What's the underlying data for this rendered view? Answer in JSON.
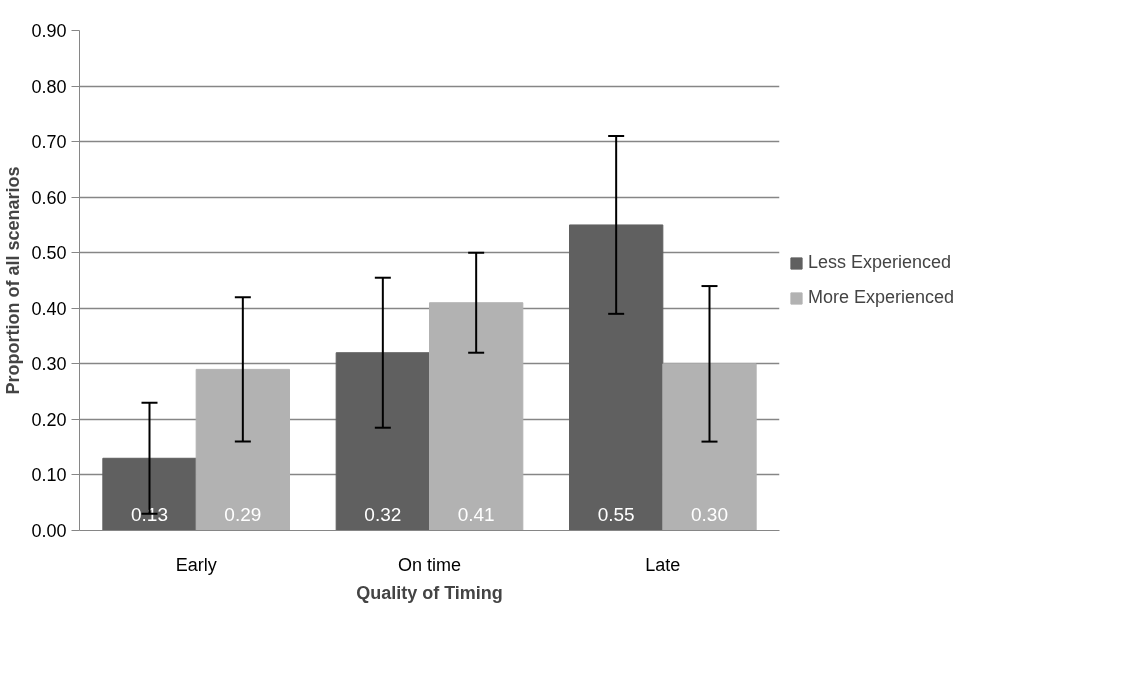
{
  "chart_data": {
    "type": "bar",
    "xlabel": "Quality of Timing",
    "ylabel": "Proportion of all scenarios",
    "categories": [
      "Early",
      "On time",
      "Late"
    ],
    "series": [
      {
        "name": "Less Experienced",
        "color": "#606060",
        "values": [
          0.13,
          0.32,
          0.55
        ],
        "errors": [
          0.1,
          0.135,
          0.16
        ],
        "value_labels": [
          "0.13",
          "0.32",
          "0.55"
        ]
      },
      {
        "name": "More Experienced",
        "color": "#b2b2b2",
        "values": [
          0.29,
          0.41,
          0.3
        ],
        "errors": [
          0.13,
          0.09,
          0.14
        ],
        "value_labels": [
          "0.29",
          "0.41",
          "0.30"
        ]
      }
    ],
    "ylim": [
      0,
      0.9
    ],
    "yticks": [
      {
        "value": 0,
        "label": "0.00"
      },
      {
        "value": 0.1,
        "label": "0.10"
      },
      {
        "value": 0.2,
        "label": "0.20"
      },
      {
        "value": 0.3,
        "label": "0.30"
      },
      {
        "value": 0.4,
        "label": "0.40"
      },
      {
        "value": 0.5,
        "label": "0.50"
      },
      {
        "value": 0.6,
        "label": "0.60"
      },
      {
        "value": 0.7,
        "label": "0.70"
      },
      {
        "value": 0.8,
        "label": "0.80"
      },
      {
        "value": 0.9,
        "label": "0.90"
      }
    ],
    "grid": "y",
    "legend": "right"
  }
}
